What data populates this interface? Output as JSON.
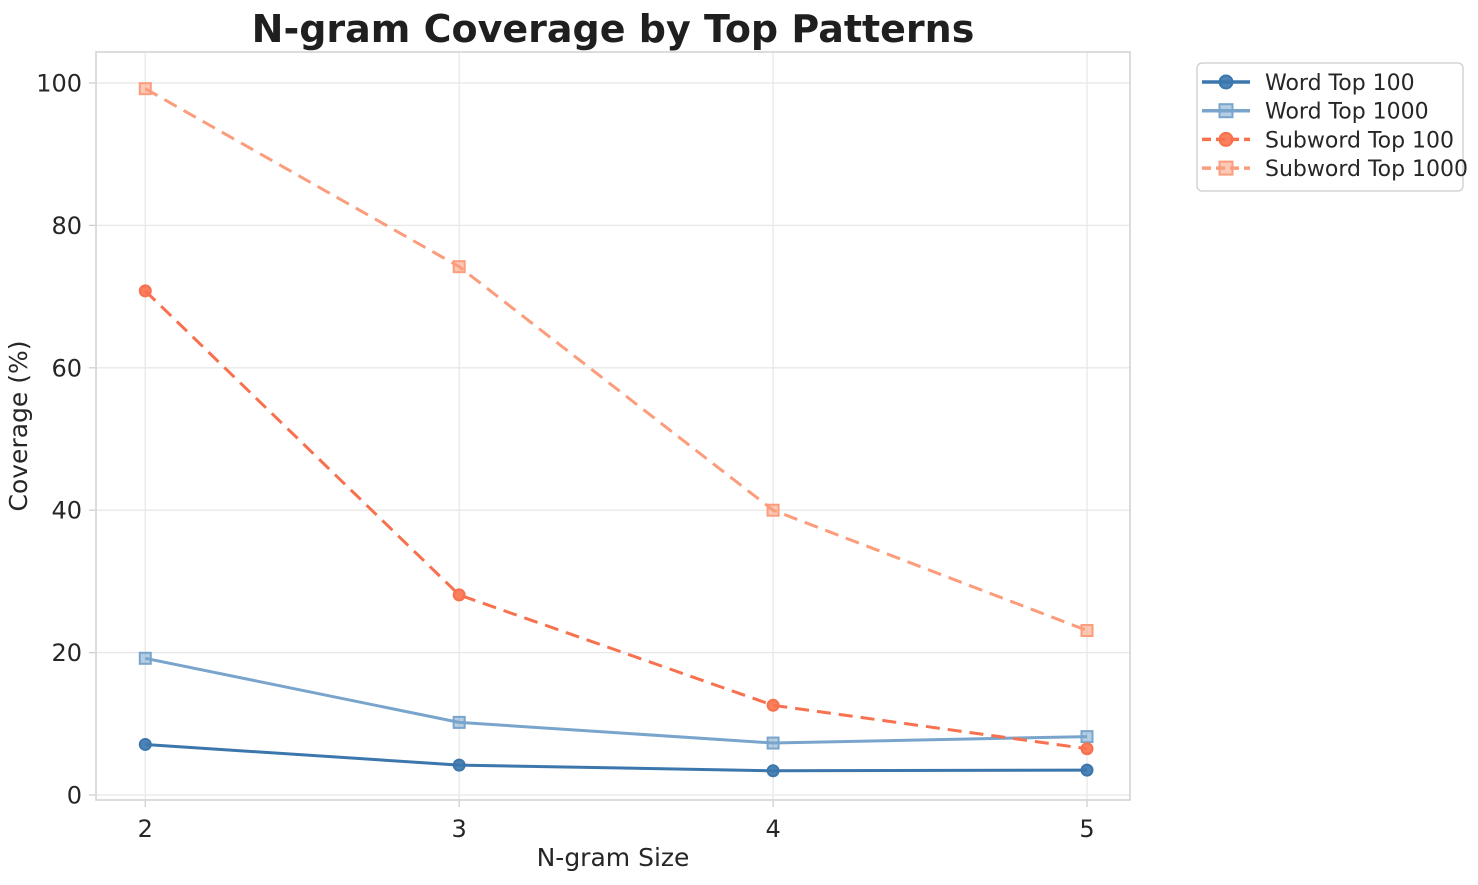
{
  "page": {
    "background": "#ffffff"
  },
  "chart_data": {
    "type": "line",
    "title": "N-gram Coverage by Top Patterns",
    "xlabel": "N-gram Size",
    "ylabel": "Coverage (%)",
    "x": [
      2,
      3,
      4,
      5
    ],
    "xtick_labels": [
      "2",
      "3",
      "4",
      "5"
    ],
    "yticks": [
      0,
      20,
      40,
      60,
      80,
      100
    ],
    "xlim": [
      1.843,
      5.137
    ],
    "ylim": [
      -0.7,
      104.35
    ],
    "grid": true,
    "grid_color": "#e8e8e8",
    "spine_color": "#d4d4d4",
    "text_color": "#262626",
    "legend": {
      "position": "outside-upper-right",
      "background": "#ffffff",
      "border_color": "#cccccc"
    },
    "series": [
      {
        "name": "Word Top 100",
        "color": "#3b77ad",
        "marker": "circle",
        "line_style": "solid",
        "values": [
          7.1,
          4.2,
          3.4,
          3.5
        ]
      },
      {
        "name": "Word Top 1000",
        "color": "#79a5cc",
        "marker": "square",
        "line_style": "solid",
        "values": [
          19.2,
          10.2,
          7.3,
          8.2
        ]
      },
      {
        "name": "Subword Top 100",
        "color": "#f8714e",
        "marker": "circle",
        "line_style": "dashed",
        "values": [
          70.8,
          28.1,
          12.6,
          6.5
        ]
      },
      {
        "name": "Subword Top 1000",
        "color": "#fb9d7c",
        "marker": "square",
        "line_style": "dashed",
        "values": [
          99.2,
          74.2,
          40.0,
          23.1
        ]
      }
    ]
  }
}
